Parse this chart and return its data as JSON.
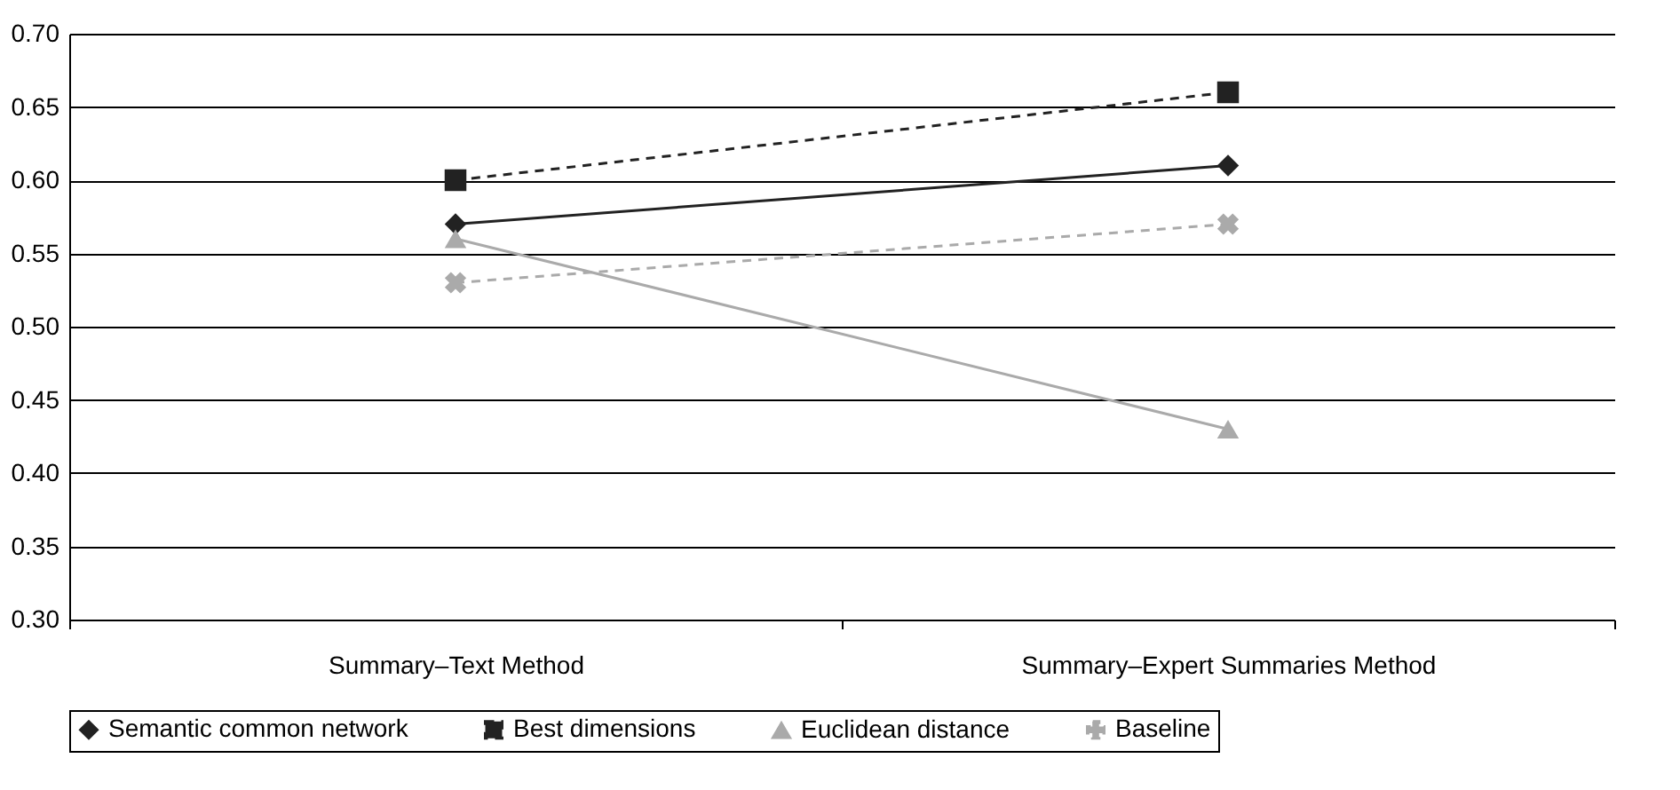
{
  "chart_data": {
    "type": "line",
    "categories": [
      "Summary–Text Method",
      "Summary–Expert Summaries Method"
    ],
    "series": [
      {
        "name": "Semantic common network",
        "color": "#222222",
        "marker": "diamond",
        "line_style": "solid",
        "values": [
          0.57,
          0.61
        ]
      },
      {
        "name": "Best dimensions",
        "color": "#222222",
        "marker": "square",
        "line_style": "dashed",
        "values": [
          0.6,
          0.66
        ]
      },
      {
        "name": "Euclidean distance",
        "color": "#aaaaaa",
        "marker": "triangle",
        "line_style": "solid",
        "values": [
          0.56,
          0.43
        ]
      },
      {
        "name": "Baseline",
        "color": "#aaaaaa",
        "marker": "cross",
        "line_style": "dashed",
        "values": [
          0.53,
          0.57
        ]
      }
    ],
    "ylim": [
      0.3,
      0.7
    ],
    "yticks": [
      {
        "value": 0.3,
        "label": "0.30"
      },
      {
        "value": 0.35,
        "label": "0.35"
      },
      {
        "value": 0.4,
        "label": "0.40"
      },
      {
        "value": 0.45,
        "label": "0.45"
      },
      {
        "value": 0.5,
        "label": "0.50"
      },
      {
        "value": 0.55,
        "label": "0.55"
      },
      {
        "value": 0.6,
        "label": "0.60"
      },
      {
        "value": 0.65,
        "label": "0.65"
      },
      {
        "value": 0.7,
        "label": "0.70"
      }
    ],
    "grid": "y",
    "legend": "bottom"
  }
}
